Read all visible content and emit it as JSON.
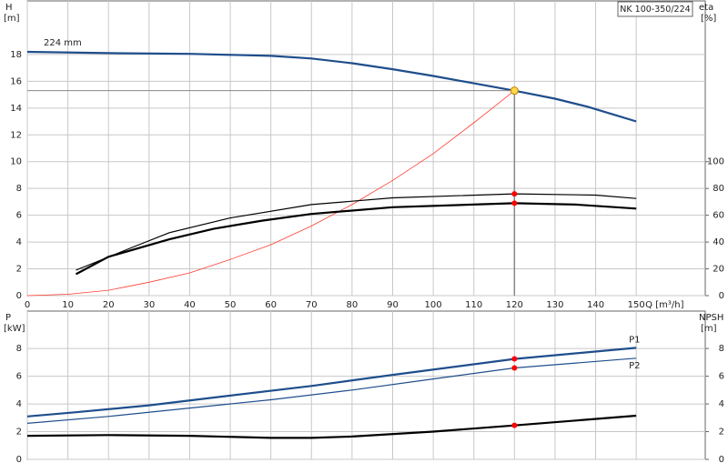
{
  "chart_data": [
    {
      "type": "line",
      "title": "NK 100-350/224",
      "ylabel": "H",
      "yunit": "[m]",
      "y2label": "eta",
      "y2unit": "[%]",
      "xlabel": "Q [m³/h]",
      "xlim": [
        0,
        167
      ],
      "xticks": [
        0,
        10,
        20,
        30,
        40,
        50,
        60,
        70,
        80,
        90,
        100,
        110,
        120,
        130,
        140,
        150
      ],
      "ylim": [
        0,
        22
      ],
      "yticks": [
        0,
        2,
        4,
        6,
        8,
        10,
        12,
        14,
        16,
        18
      ],
      "y2lim": [
        0,
        220
      ],
      "y2ticks": [
        0,
        20,
        40,
        60,
        80,
        100
      ],
      "grid": true,
      "operating_point": 120,
      "series": [
        {
          "name": "224 mm",
          "label_at": "start",
          "color": "#1f4e8c",
          "style": "thick",
          "point_color": "#ffd94a",
          "x": [
            0,
            20,
            40,
            60,
            70,
            80,
            90,
            100,
            110,
            120,
            130,
            138,
            150
          ],
          "values": [
            18.2,
            18.1,
            18.05,
            17.9,
            17.7,
            17.35,
            16.9,
            16.4,
            15.85,
            15.3,
            14.7,
            14.1,
            13.0
          ]
        },
        {
          "color": "#ff3b30",
          "style": "hair",
          "x": [
            0,
            10,
            20,
            30,
            40,
            50,
            60,
            70,
            80,
            90,
            100,
            110,
            120
          ],
          "values": [
            0,
            0.1,
            0.4,
            1.0,
            1.7,
            2.7,
            3.8,
            5.2,
            6.8,
            8.6,
            10.6,
            12.9,
            15.3
          ]
        },
        {
          "color": "#000000",
          "style": "thin",
          "axis": "y2",
          "point_color": "#ff0000",
          "x": [
            12,
            25,
            35,
            50,
            70,
            90,
            120,
            140,
            150
          ],
          "values": [
            19,
            35,
            47,
            58,
            68,
            73,
            76,
            75,
            72.5
          ]
        },
        {
          "color": "#000000",
          "style": "thick",
          "axis": "y2",
          "point_color": "#ff0000",
          "x": [
            12,
            20,
            35,
            46,
            58,
            70,
            90,
            120,
            135,
            150
          ],
          "values": [
            16,
            29,
            42,
            50,
            56,
            61,
            66,
            69,
            68,
            65
          ]
        }
      ]
    },
    {
      "type": "line",
      "ylabel": "P",
      "yunit": "[kW]",
      "y2label": "NPSH",
      "y2unit": "[m]",
      "xlim": [
        0,
        167
      ],
      "xticks": [
        0,
        10,
        20,
        30,
        40,
        50,
        60,
        70,
        80,
        90,
        100,
        110,
        120,
        130,
        140,
        150
      ],
      "ylim": [
        0,
        10.7
      ],
      "yticks": [
        0,
        2,
        4,
        6,
        8
      ],
      "y2lim": [
        0,
        10.7
      ],
      "y2ticks": [
        0,
        2,
        4,
        6,
        8
      ],
      "grid": true,
      "operating_point": 120,
      "series": [
        {
          "name": "P1",
          "label_at": "end",
          "color": "#1f4e8c",
          "style": "thick",
          "point_color": "#ff0000",
          "x": [
            0,
            12,
            30,
            50,
            70,
            90,
            120,
            150
          ],
          "values": [
            3.1,
            3.4,
            3.9,
            4.6,
            5.3,
            6.1,
            7.25,
            8.05
          ]
        },
        {
          "name": "P2",
          "label_at": "end",
          "color": "#1f4e8c",
          "style": "thin",
          "point_color": "#ff0000",
          "x": [
            0,
            20,
            40,
            60,
            80,
            100,
            120,
            150
          ],
          "values": [
            2.6,
            3.1,
            3.7,
            4.3,
            5.0,
            5.8,
            6.6,
            7.3
          ]
        },
        {
          "color": "#000000",
          "style": "thick",
          "axis": "y2",
          "point_color": "#ff0000",
          "x": [
            0,
            20,
            40,
            60,
            70,
            80,
            100,
            120,
            150
          ],
          "values": [
            1.7,
            1.75,
            1.7,
            1.55,
            1.55,
            1.65,
            2.0,
            2.45,
            3.15
          ]
        }
      ]
    }
  ]
}
